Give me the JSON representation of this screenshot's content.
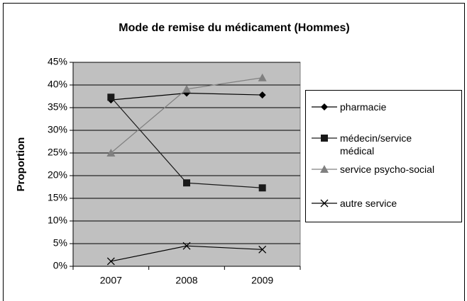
{
  "chart_data": {
    "type": "line",
    "title": "Mode de remise du médicament (Hommes)",
    "y_label": "Proportion",
    "categories": [
      "2007",
      "2008",
      "2009"
    ],
    "series": [
      {
        "name": "pharmacie",
        "color": "#000000",
        "marker": "diamond",
        "values": [
          36.7,
          38.2,
          37.8
        ]
      },
      {
        "name": "médecin/service médical",
        "color": "#1a1a1a",
        "marker": "square",
        "values": [
          37.3,
          18.4,
          17.3
        ]
      },
      {
        "name": "service psycho-social",
        "color": "#808080",
        "marker": "triangle",
        "values": [
          25.0,
          39.1,
          41.6
        ]
      },
      {
        "name": "autre service",
        "color": "#000000",
        "marker": "x",
        "values": [
          1.1,
          4.5,
          3.7
        ]
      }
    ],
    "ylim": [
      0,
      45
    ],
    "yticks": [
      {
        "value": 0,
        "label": "0%"
      },
      {
        "value": 5,
        "label": "5%"
      },
      {
        "value": 10,
        "label": "10%"
      },
      {
        "value": 15,
        "label": "15%"
      },
      {
        "value": 20,
        "label": "20%"
      },
      {
        "value": 25,
        "label": "25%"
      },
      {
        "value": 30,
        "label": "30%"
      },
      {
        "value": 35,
        "label": "35%"
      },
      {
        "value": 40,
        "label": "40%"
      },
      {
        "value": 45,
        "label": "45%"
      }
    ],
    "grid": true,
    "legend": "right"
  }
}
